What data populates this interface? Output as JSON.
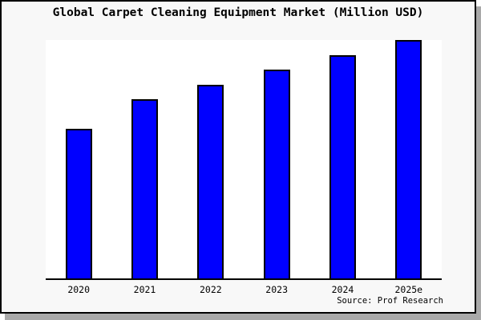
{
  "window": {
    "background_color": "#f8f8f8",
    "border_color": "#000000",
    "shadow_color": "#a9a9a9"
  },
  "chart_data": {
    "type": "bar",
    "title": "Global Carpet Cleaning Equipment Market (Million USD)",
    "categories": [
      "2020",
      "2021",
      "2022",
      "2023",
      "2024",
      "2025e"
    ],
    "values": [
      62.7,
      75.0,
      81.3,
      87.7,
      93.7,
      100.0
    ],
    "values_note": "relative bar heights as % of tallest bar; chart shows no numeric y-axis scale",
    "xlabel": "",
    "ylabel": "",
    "y_axis_ticks_shown": false,
    "gridlines": false,
    "legend_position": "none",
    "bar_color": "#0000ff",
    "bar_border_color": "#000000",
    "plot_background": "#ffffff",
    "source_note": "Source: Prof Research"
  }
}
